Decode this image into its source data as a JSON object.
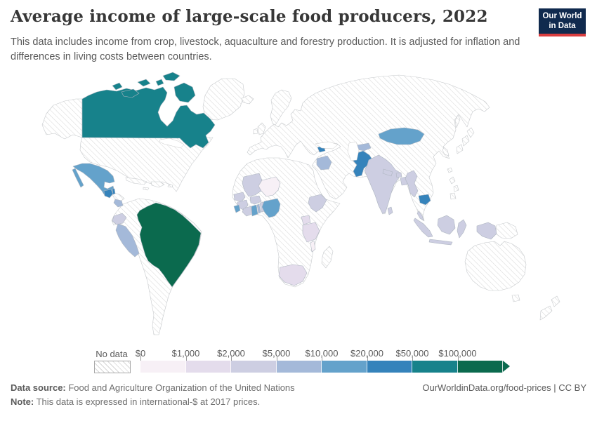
{
  "header": {
    "title": "Average income of large-scale food producers, 2022",
    "subtitle": "This data includes income from crop, livestock, aquaculture and forestry production. It is adjusted for inflation and differences in living costs between countries."
  },
  "logo": {
    "line1": "Our World",
    "line2": "in Data",
    "bg_color": "#102a4e",
    "bar_color": "#d93d3f"
  },
  "legend": {
    "no_data_label": "No data",
    "ticks": [
      "$0",
      "$1,000",
      "$2,000",
      "$5,000",
      "$10,000",
      "$20,000",
      "$50,000",
      "$100,000"
    ],
    "colors": [
      "#f7f0f6",
      "#e4dcec",
      "#cdcee2",
      "#a4b9d9",
      "#64a2cb",
      "#3583bb",
      "#17828b",
      "#0b6a4e"
    ],
    "hatch_color": "#d6d6d6"
  },
  "footer": {
    "source_label": "Data source:",
    "source_text": " Food and Agriculture Organization of the United Nations",
    "note_label": "Note:",
    "note_text": " This data is expressed in international-$ at 2017 prices.",
    "right_text": "OurWorldinData.org/food-prices | CC BY"
  },
  "chart_data": {
    "type": "heatmap",
    "subtype": "choropleth-world-map",
    "title": "Average income of large-scale food producers, 2022",
    "unit": "international-$ at 2017 prices",
    "legend_position": "bottom",
    "bucket_ranges": [
      "$0–$1,000",
      "$1,000–$2,000",
      "$2,000–$5,000",
      "$5,000–$10,000",
      "$10,000–$20,000",
      "$20,000–$50,000",
      "$50,000–$100,000",
      "$100,000+"
    ],
    "no_data_regions": "United States, Greenland, Europe, Russia, China, Australia, most of South America, North/Central Africa, Middle East and others (hatched)",
    "countries": [
      {
        "id": "canada",
        "name": "Canada",
        "bucket": 6
      },
      {
        "id": "brazil",
        "name": "Brazil",
        "bucket": 7
      },
      {
        "id": "mexico",
        "name": "Mexico",
        "bucket": 4
      },
      {
        "id": "guatemala",
        "name": "Guatemala",
        "bucket": 5
      },
      {
        "id": "belize",
        "name": "Belize",
        "bucket": 5
      },
      {
        "id": "nicaragua",
        "name": "Nicaragua",
        "bucket": 3
      },
      {
        "id": "ecuador",
        "name": "Ecuador",
        "bucket": 2
      },
      {
        "id": "peru",
        "name": "Peru",
        "bucket": 3
      },
      {
        "id": "mali",
        "name": "Mali",
        "bucket": 2
      },
      {
        "id": "niger",
        "name": "Niger",
        "bucket": 0
      },
      {
        "id": "senegal",
        "name": "Senegal",
        "bucket": 2
      },
      {
        "id": "guinea",
        "name": "Guinea",
        "bucket": 2
      },
      {
        "id": "sierra-leone",
        "name": "Sierra Leone",
        "bucket": 4
      },
      {
        "id": "cote-divoire",
        "name": "Cote d'Ivoire",
        "bucket": 2
      },
      {
        "id": "ghana",
        "name": "Ghana",
        "bucket": 4
      },
      {
        "id": "togo",
        "name": "Togo",
        "bucket": 3
      },
      {
        "id": "benin",
        "name": "Benin",
        "bucket": 2
      },
      {
        "id": "burkina-faso",
        "name": "Burkina Faso",
        "bucket": 2
      },
      {
        "id": "nigeria",
        "name": "Nigeria",
        "bucket": 4
      },
      {
        "id": "ethiopia",
        "name": "Ethiopia",
        "bucket": 2
      },
      {
        "id": "uganda",
        "name": "Uganda",
        "bucket": 1
      },
      {
        "id": "tanzania",
        "name": "Tanzania",
        "bucket": 1
      },
      {
        "id": "malawi",
        "name": "Malawi",
        "bucket": 0
      },
      {
        "id": "south-africa",
        "name": "South Africa",
        "bucket": 1
      },
      {
        "id": "iraq",
        "name": "Iraq",
        "bucket": 3
      },
      {
        "id": "armenia",
        "name": "Armenia",
        "bucket": 5
      },
      {
        "id": "kyrgyzstan",
        "name": "Kyrgyzstan",
        "bucket": 3
      },
      {
        "id": "pakistan",
        "name": "Pakistan",
        "bucket": 5
      },
      {
        "id": "india",
        "name": "India",
        "bucket": 2
      },
      {
        "id": "nepal",
        "name": "Nepal",
        "bucket": 2
      },
      {
        "id": "bhutan",
        "name": "Bhutan",
        "bucket": 2
      },
      {
        "id": "bangladesh",
        "name": "Bangladesh",
        "bucket": 2
      },
      {
        "id": "sri-lanka",
        "name": "Sri Lanka",
        "bucket": 2
      },
      {
        "id": "myanmar",
        "name": "Myanmar",
        "bucket": 2
      },
      {
        "id": "cambodia",
        "name": "Cambodia",
        "bucket": 5
      },
      {
        "id": "mongolia",
        "name": "Mongolia",
        "bucket": 4
      },
      {
        "id": "malaysia",
        "name": "Malaysia",
        "bucket": 2
      },
      {
        "id": "indonesia",
        "name": "Indonesia",
        "bucket": 2
      }
    ]
  }
}
